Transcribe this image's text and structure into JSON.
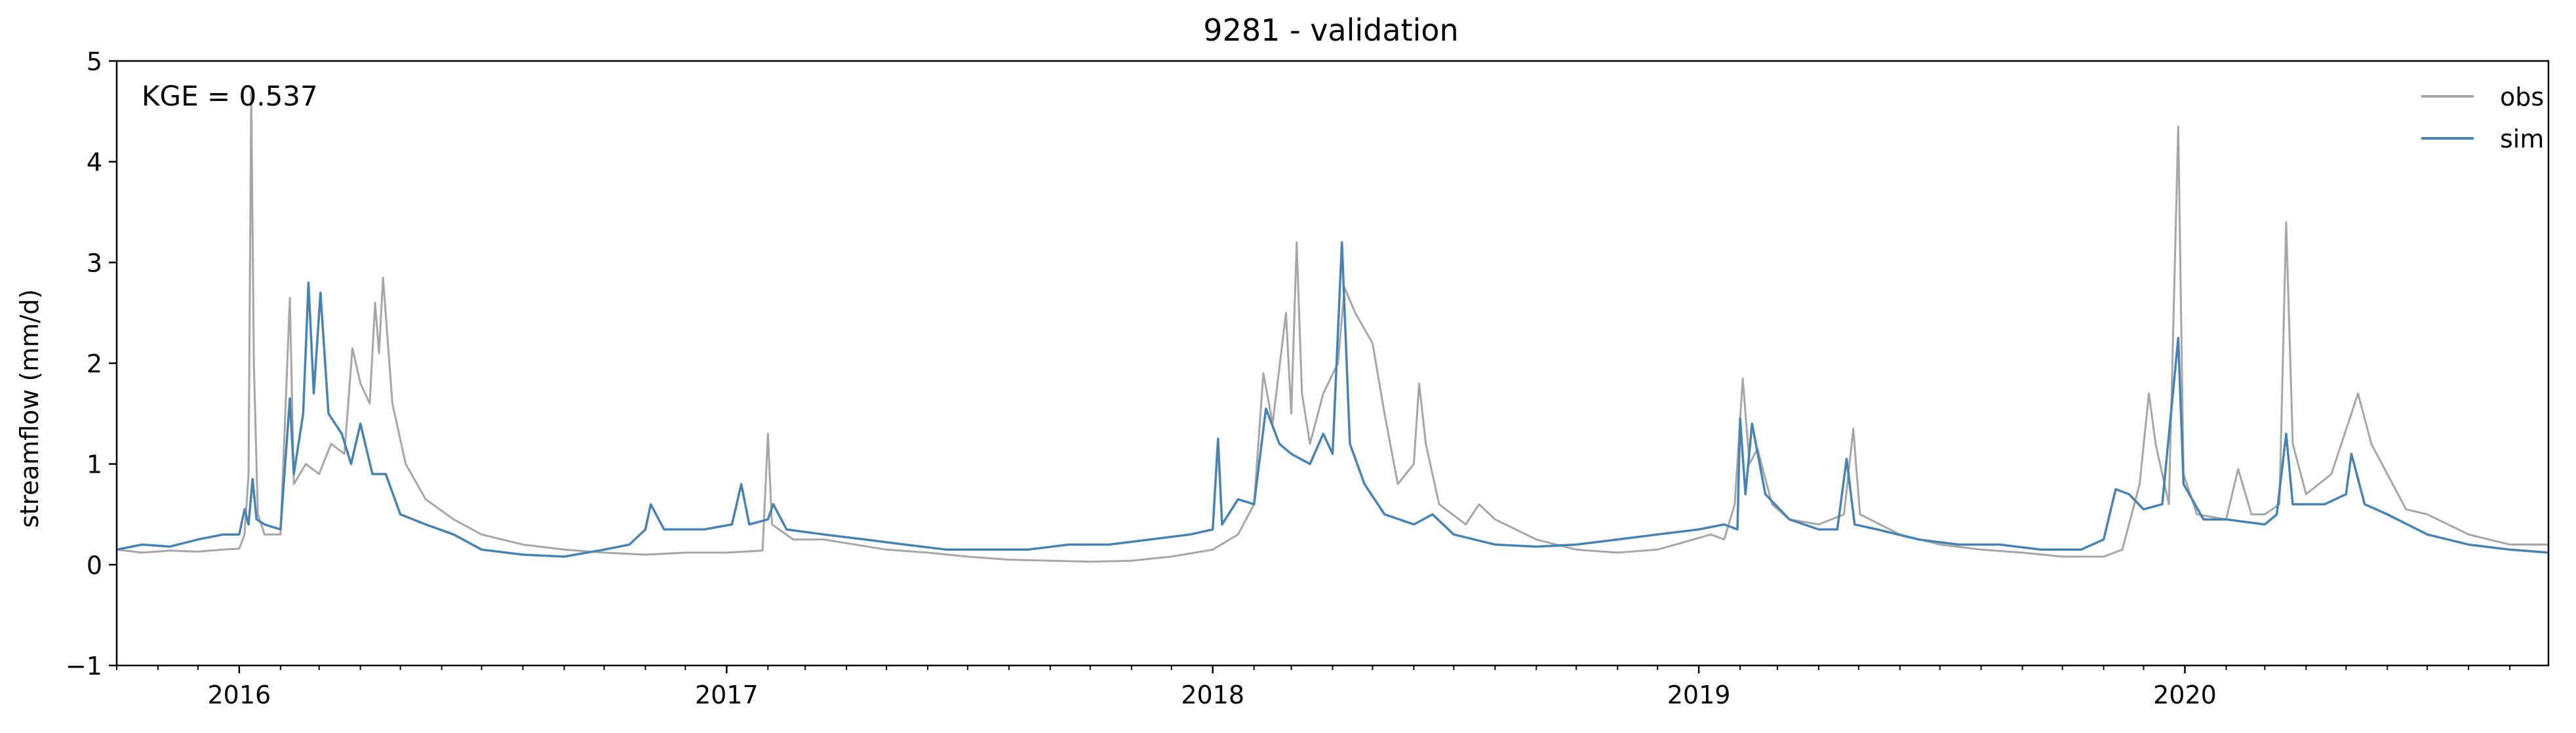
{
  "chart_data": {
    "type": "line",
    "title": "9281 - validation",
    "ylabel": "streamflow (mm/d)",
    "xlabel": "",
    "ylim": [
      -1,
      5
    ],
    "xlim": [
      "2015-10-01",
      "2020-09-30"
    ],
    "yticks": [
      -1,
      0,
      1,
      2,
      3,
      4,
      5
    ],
    "xticks": [
      {
        "date": "2016-01-01",
        "label": "2016"
      },
      {
        "date": "2017-01-01",
        "label": "2017"
      },
      {
        "date": "2018-01-01",
        "label": "2018"
      },
      {
        "date": "2019-01-01",
        "label": "2019"
      },
      {
        "date": "2020-01-01",
        "label": "2020"
      }
    ],
    "annotation": "KGE = 0.537",
    "legend_position": "top-right",
    "grid": false,
    "series": [
      {
        "name": "obs",
        "color": "#a6a6a6",
        "points": [
          [
            "2015-10-01",
            0.15
          ],
          [
            "2015-10-20",
            0.12
          ],
          [
            "2015-11-10",
            0.14
          ],
          [
            "2015-12-01",
            0.13
          ],
          [
            "2015-12-20",
            0.15
          ],
          [
            "2016-01-01",
            0.16
          ],
          [
            "2016-01-05",
            0.3
          ],
          [
            "2016-01-08",
            0.9
          ],
          [
            "2016-01-10",
            4.7
          ],
          [
            "2016-01-12",
            2.0
          ],
          [
            "2016-01-15",
            0.5
          ],
          [
            "2016-01-20",
            0.3
          ],
          [
            "2016-02-01",
            0.3
          ],
          [
            "2016-02-08",
            2.65
          ],
          [
            "2016-02-11",
            0.8
          ],
          [
            "2016-02-20",
            1.0
          ],
          [
            "2016-03-01",
            0.9
          ],
          [
            "2016-03-10",
            1.2
          ],
          [
            "2016-03-20",
            1.1
          ],
          [
            "2016-03-26",
            2.15
          ],
          [
            "2016-04-01",
            1.8
          ],
          [
            "2016-04-08",
            1.6
          ],
          [
            "2016-04-12",
            2.6
          ],
          [
            "2016-04-15",
            2.1
          ],
          [
            "2016-04-18",
            2.85
          ],
          [
            "2016-04-25",
            1.6
          ],
          [
            "2016-05-05",
            1.0
          ],
          [
            "2016-05-20",
            0.65
          ],
          [
            "2016-06-10",
            0.45
          ],
          [
            "2016-07-01",
            0.3
          ],
          [
            "2016-08-01",
            0.2
          ],
          [
            "2016-09-01",
            0.15
          ],
          [
            "2016-10-01",
            0.12
          ],
          [
            "2016-11-01",
            0.1
          ],
          [
            "2016-12-01",
            0.12
          ],
          [
            "2017-01-01",
            0.12
          ],
          [
            "2017-01-28",
            0.14
          ],
          [
            "2017-02-01",
            1.3
          ],
          [
            "2017-02-04",
            0.4
          ],
          [
            "2017-02-20",
            0.25
          ],
          [
            "2017-03-15",
            0.25
          ],
          [
            "2017-05-01",
            0.15
          ],
          [
            "2017-06-01",
            0.12
          ],
          [
            "2017-07-01",
            0.08
          ],
          [
            "2017-08-01",
            0.05
          ],
          [
            "2017-09-01",
            0.04
          ],
          [
            "2017-10-01",
            0.03
          ],
          [
            "2017-11-01",
            0.04
          ],
          [
            "2017-12-01",
            0.08
          ],
          [
            "2018-01-01",
            0.15
          ],
          [
            "2018-01-20",
            0.3
          ],
          [
            "2018-02-01",
            0.6
          ],
          [
            "2018-02-08",
            1.9
          ],
          [
            "2018-02-15",
            1.4
          ],
          [
            "2018-02-25",
            2.5
          ],
          [
            "2018-03-01",
            1.5
          ],
          [
            "2018-03-05",
            3.2
          ],
          [
            "2018-03-09",
            1.7
          ],
          [
            "2018-03-15",
            1.2
          ],
          [
            "2018-03-25",
            1.7
          ],
          [
            "2018-04-05",
            2.0
          ],
          [
            "2018-04-10",
            2.75
          ],
          [
            "2018-04-18",
            2.5
          ],
          [
            "2018-05-01",
            2.2
          ],
          [
            "2018-05-10",
            1.5
          ],
          [
            "2018-05-20",
            0.8
          ],
          [
            "2018-06-01",
            1.0
          ],
          [
            "2018-06-05",
            1.8
          ],
          [
            "2018-06-10",
            1.2
          ],
          [
            "2018-06-20",
            0.6
          ],
          [
            "2018-07-10",
            0.4
          ],
          [
            "2018-07-20",
            0.6
          ],
          [
            "2018-08-01",
            0.45
          ],
          [
            "2018-09-01",
            0.25
          ],
          [
            "2018-10-01",
            0.15
          ],
          [
            "2018-11-01",
            0.12
          ],
          [
            "2018-12-01",
            0.15
          ],
          [
            "2018-12-20",
            0.22
          ],
          [
            "2019-01-10",
            0.3
          ],
          [
            "2019-01-20",
            0.25
          ],
          [
            "2019-01-28",
            0.6
          ],
          [
            "2019-02-03",
            1.85
          ],
          [
            "2019-02-08",
            1.0
          ],
          [
            "2019-02-14",
            1.15
          ],
          [
            "2019-02-25",
            0.6
          ],
          [
            "2019-03-10",
            0.45
          ],
          [
            "2019-04-01",
            0.4
          ],
          [
            "2019-04-20",
            0.5
          ],
          [
            "2019-04-27",
            1.35
          ],
          [
            "2019-05-02",
            0.5
          ],
          [
            "2019-06-01",
            0.3
          ],
          [
            "2019-07-01",
            0.2
          ],
          [
            "2019-08-01",
            0.15
          ],
          [
            "2019-09-01",
            0.12
          ],
          [
            "2019-10-01",
            0.08
          ],
          [
            "2019-11-01",
            0.08
          ],
          [
            "2019-11-15",
            0.15
          ],
          [
            "2019-11-28",
            0.8
          ],
          [
            "2019-12-05",
            1.7
          ],
          [
            "2019-12-10",
            1.2
          ],
          [
            "2019-12-20",
            0.6
          ],
          [
            "2019-12-27",
            4.35
          ],
          [
            "2019-12-31",
            0.9
          ],
          [
            "2020-01-10",
            0.5
          ],
          [
            "2020-02-01",
            0.45
          ],
          [
            "2020-02-10",
            0.95
          ],
          [
            "2020-02-20",
            0.5
          ],
          [
            "2020-03-01",
            0.5
          ],
          [
            "2020-03-12",
            0.6
          ],
          [
            "2020-03-17",
            3.4
          ],
          [
            "2020-03-22",
            1.2
          ],
          [
            "2020-04-01",
            0.7
          ],
          [
            "2020-04-20",
            0.9
          ],
          [
            "2020-05-05",
            1.5
          ],
          [
            "2020-05-10",
            1.7
          ],
          [
            "2020-05-20",
            1.2
          ],
          [
            "2020-06-01",
            0.9
          ],
          [
            "2020-06-15",
            0.55
          ],
          [
            "2020-07-01",
            0.5
          ],
          [
            "2020-08-01",
            0.3
          ],
          [
            "2020-09-01",
            0.2
          ],
          [
            "2020-09-30",
            0.2
          ]
        ]
      },
      {
        "name": "sim",
        "color": "#4682b4",
        "points": [
          [
            "2015-10-01",
            0.15
          ],
          [
            "2015-10-20",
            0.2
          ],
          [
            "2015-11-10",
            0.18
          ],
          [
            "2015-12-01",
            0.25
          ],
          [
            "2015-12-20",
            0.3
          ],
          [
            "2016-01-01",
            0.3
          ],
          [
            "2016-01-05",
            0.55
          ],
          [
            "2016-01-08",
            0.4
          ],
          [
            "2016-01-11",
            0.85
          ],
          [
            "2016-01-14",
            0.45
          ],
          [
            "2016-01-20",
            0.4
          ],
          [
            "2016-02-01",
            0.35
          ],
          [
            "2016-02-08",
            1.65
          ],
          [
            "2016-02-11",
            0.9
          ],
          [
            "2016-02-18",
            1.5
          ],
          [
            "2016-02-22",
            2.8
          ],
          [
            "2016-02-26",
            1.7
          ],
          [
            "2016-03-02",
            2.7
          ],
          [
            "2016-03-08",
            1.5
          ],
          [
            "2016-03-18",
            1.3
          ],
          [
            "2016-03-25",
            1.0
          ],
          [
            "2016-04-01",
            1.4
          ],
          [
            "2016-04-10",
            0.9
          ],
          [
            "2016-04-20",
            0.9
          ],
          [
            "2016-05-01",
            0.5
          ],
          [
            "2016-05-20",
            0.4
          ],
          [
            "2016-06-10",
            0.3
          ],
          [
            "2016-07-01",
            0.15
          ],
          [
            "2016-08-01",
            0.1
          ],
          [
            "2016-09-01",
            0.08
          ],
          [
            "2016-10-01",
            0.15
          ],
          [
            "2016-10-20",
            0.2
          ],
          [
            "2016-11-01",
            0.35
          ],
          [
            "2016-11-05",
            0.6
          ],
          [
            "2016-11-15",
            0.35
          ],
          [
            "2016-12-15",
            0.35
          ],
          [
            "2017-01-05",
            0.4
          ],
          [
            "2017-01-12",
            0.8
          ],
          [
            "2017-01-18",
            0.4
          ],
          [
            "2017-02-01",
            0.45
          ],
          [
            "2017-02-05",
            0.6
          ],
          [
            "2017-02-15",
            0.35
          ],
          [
            "2017-03-15",
            0.3
          ],
          [
            "2017-04-15",
            0.25
          ],
          [
            "2017-05-15",
            0.2
          ],
          [
            "2017-06-15",
            0.15
          ],
          [
            "2017-07-15",
            0.15
          ],
          [
            "2017-08-15",
            0.15
          ],
          [
            "2017-09-15",
            0.2
          ],
          [
            "2017-10-15",
            0.2
          ],
          [
            "2017-11-15",
            0.25
          ],
          [
            "2017-12-15",
            0.3
          ],
          [
            "2018-01-01",
            0.35
          ],
          [
            "2018-01-05",
            1.25
          ],
          [
            "2018-01-08",
            0.4
          ],
          [
            "2018-01-20",
            0.65
          ],
          [
            "2018-02-01",
            0.6
          ],
          [
            "2018-02-10",
            1.55
          ],
          [
            "2018-02-20",
            1.2
          ],
          [
            "2018-03-01",
            1.1
          ],
          [
            "2018-03-15",
            1.0
          ],
          [
            "2018-03-25",
            1.3
          ],
          [
            "2018-04-01",
            1.1
          ],
          [
            "2018-04-08",
            3.2
          ],
          [
            "2018-04-14",
            1.2
          ],
          [
            "2018-04-25",
            0.8
          ],
          [
            "2018-05-10",
            0.5
          ],
          [
            "2018-06-01",
            0.4
          ],
          [
            "2018-06-15",
            0.5
          ],
          [
            "2018-07-01",
            0.3
          ],
          [
            "2018-08-01",
            0.2
          ],
          [
            "2018-09-01",
            0.18
          ],
          [
            "2018-10-01",
            0.2
          ],
          [
            "2018-11-01",
            0.25
          ],
          [
            "2018-12-01",
            0.3
          ],
          [
            "2019-01-01",
            0.35
          ],
          [
            "2019-01-20",
            0.4
          ],
          [
            "2019-01-30",
            0.35
          ],
          [
            "2019-02-01",
            1.45
          ],
          [
            "2019-02-05",
            0.7
          ],
          [
            "2019-02-10",
            1.4
          ],
          [
            "2019-02-20",
            0.7
          ],
          [
            "2019-03-10",
            0.45
          ],
          [
            "2019-04-01",
            0.35
          ],
          [
            "2019-04-15",
            0.35
          ],
          [
            "2019-04-22",
            1.05
          ],
          [
            "2019-04-28",
            0.4
          ],
          [
            "2019-05-15",
            0.35
          ],
          [
            "2019-06-15",
            0.25
          ],
          [
            "2019-07-15",
            0.2
          ],
          [
            "2019-08-15",
            0.2
          ],
          [
            "2019-09-15",
            0.15
          ],
          [
            "2019-10-15",
            0.15
          ],
          [
            "2019-11-01",
            0.25
          ],
          [
            "2019-11-10",
            0.75
          ],
          [
            "2019-11-20",
            0.7
          ],
          [
            "2019-12-01",
            0.55
          ],
          [
            "2019-12-15",
            0.6
          ],
          [
            "2019-12-27",
            2.25
          ],
          [
            "2019-12-31",
            0.8
          ],
          [
            "2020-01-15",
            0.45
          ],
          [
            "2020-02-01",
            0.45
          ],
          [
            "2020-03-01",
            0.4
          ],
          [
            "2020-03-10",
            0.5
          ],
          [
            "2020-03-17",
            1.3
          ],
          [
            "2020-03-22",
            0.6
          ],
          [
            "2020-04-15",
            0.6
          ],
          [
            "2020-05-01",
            0.7
          ],
          [
            "2020-05-05",
            1.1
          ],
          [
            "2020-05-15",
            0.6
          ],
          [
            "2020-06-01",
            0.5
          ],
          [
            "2020-07-01",
            0.3
          ],
          [
            "2020-08-01",
            0.2
          ],
          [
            "2020-09-01",
            0.15
          ],
          [
            "2020-09-30",
            0.12
          ]
        ]
      }
    ]
  }
}
